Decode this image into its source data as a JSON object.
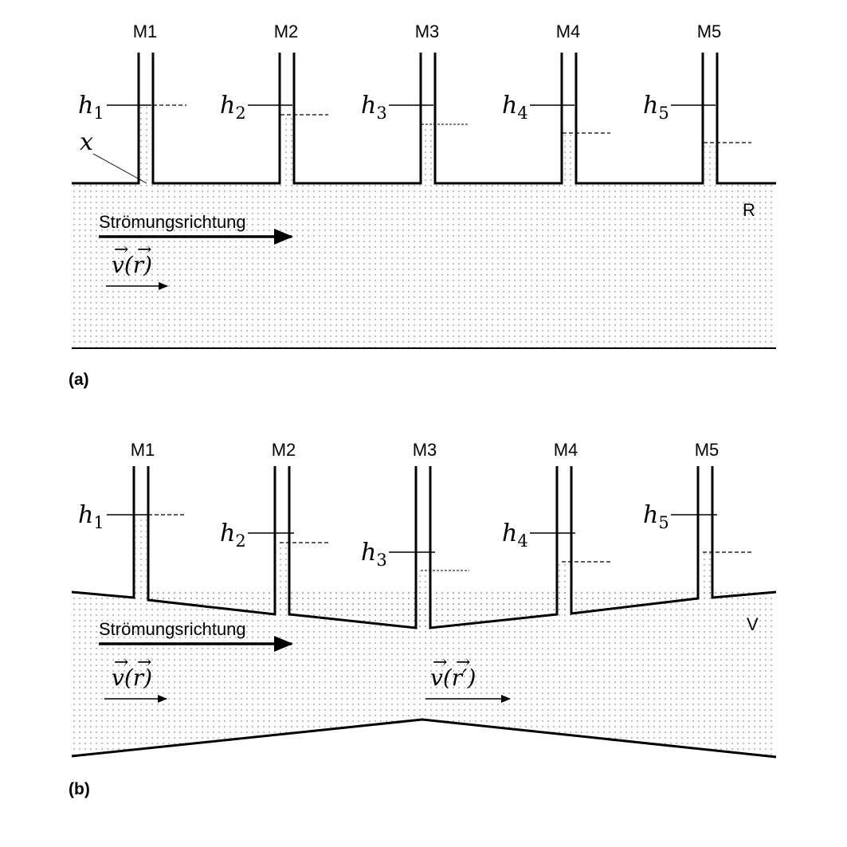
{
  "colors": {
    "stroke": "#000000",
    "background": "#ffffff",
    "fluid_dots": "#8a8a8a"
  },
  "panels": [
    {
      "tag": "(a)",
      "pipe_label": "R",
      "flow_label": "Strömungsrichtung",
      "velocity_labels": [
        "v(r)"
      ],
      "point_label": "x",
      "tubes": [
        {
          "name": "M1",
          "h": "h",
          "sub": "1"
        },
        {
          "name": "M2",
          "h": "h",
          "sub": "2"
        },
        {
          "name": "M3",
          "h": "h",
          "sub": "3"
        },
        {
          "name": "M4",
          "h": "h",
          "sub": "4"
        },
        {
          "name": "M5",
          "h": "h",
          "sub": "5"
        }
      ]
    },
    {
      "tag": "(b)",
      "pipe_label": "V",
      "flow_label": "Strömungsrichtung",
      "velocity_labels": [
        "v(r)",
        "v(r′)"
      ],
      "tubes": [
        {
          "name": "M1",
          "h": "h",
          "sub": "1"
        },
        {
          "name": "M2",
          "h": "h",
          "sub": "2"
        },
        {
          "name": "M3",
          "h": "h",
          "sub": "3"
        },
        {
          "name": "M4",
          "h": "h",
          "sub": "4"
        },
        {
          "name": "M5",
          "h": "h",
          "sub": "5"
        }
      ]
    }
  ]
}
